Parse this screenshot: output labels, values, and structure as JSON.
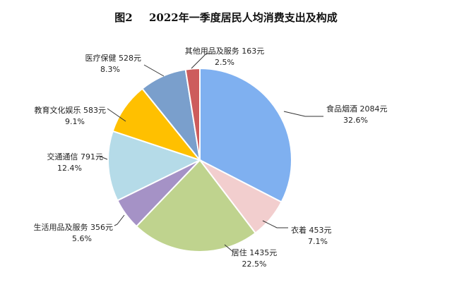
{
  "chart_data": {
    "type": "pie",
    "title_prefix": "图2",
    "title": "2022年一季度居民人均消费支出及构成",
    "slices": [
      {
        "name": "食品烟酒",
        "amount": "2084元",
        "value": 32.6,
        "pct": "32.6%",
        "color": "#7fb0f0"
      },
      {
        "name": "衣着",
        "amount": "453元",
        "value": 7.1,
        "pct": "7.1%",
        "color": "#f2cece"
      },
      {
        "name": "居住",
        "amount": "1435元",
        "value": 22.5,
        "pct": "22.5%",
        "color": "#bfd38e"
      },
      {
        "name": "生活用品及服务",
        "amount": "356元",
        "value": 5.6,
        "pct": "5.6%",
        "color": "#a592c6"
      },
      {
        "name": "交通通信",
        "amount": "791元",
        "value": 12.4,
        "pct": "12.4%",
        "color": "#b5dbe8"
      },
      {
        "name": "教育文化娱乐",
        "amount": "583元",
        "value": 9.1,
        "pct": "9.1%",
        "color": "#ffc000"
      },
      {
        "name": "医疗保健",
        "amount": "528元",
        "value": 8.3,
        "pct": "8.3%",
        "color": "#7a9fcc"
      },
      {
        "name": "其他用品及服务",
        "amount": "163元",
        "value": 2.5,
        "pct": "2.5%",
        "color": "#cd5c5c"
      }
    ]
  }
}
